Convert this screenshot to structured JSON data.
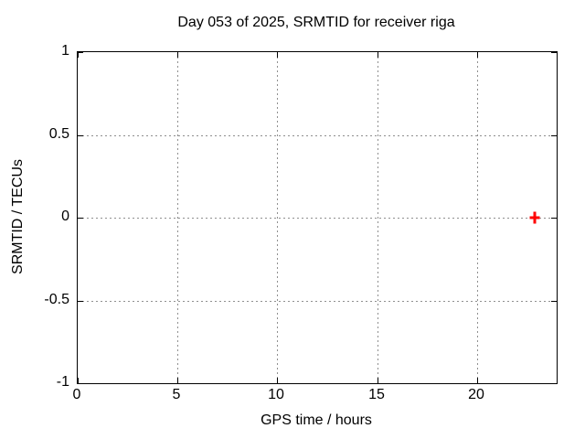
{
  "chart_data": {
    "type": "scatter",
    "title": "Day 053 of 2025, SRMTID for receiver riga",
    "xlabel": "GPS time / hours",
    "ylabel": "SRMTID / TECUs",
    "xlim": [
      0,
      24
    ],
    "ylim": [
      -1,
      1
    ],
    "xticks": [
      0,
      5,
      10,
      15,
      20
    ],
    "yticks": [
      -1,
      -0.5,
      0,
      0.5,
      1
    ],
    "grid": true,
    "legend_position": "none",
    "background_color": "#ffffff",
    "axis_color": "#000000",
    "grid_color": "#8f8f8f",
    "series": [
      {
        "name": "SRMTID",
        "marker": "plus",
        "color": "#ff0000",
        "points": [
          {
            "x": 22.9,
            "y": 0.0
          }
        ]
      }
    ]
  }
}
